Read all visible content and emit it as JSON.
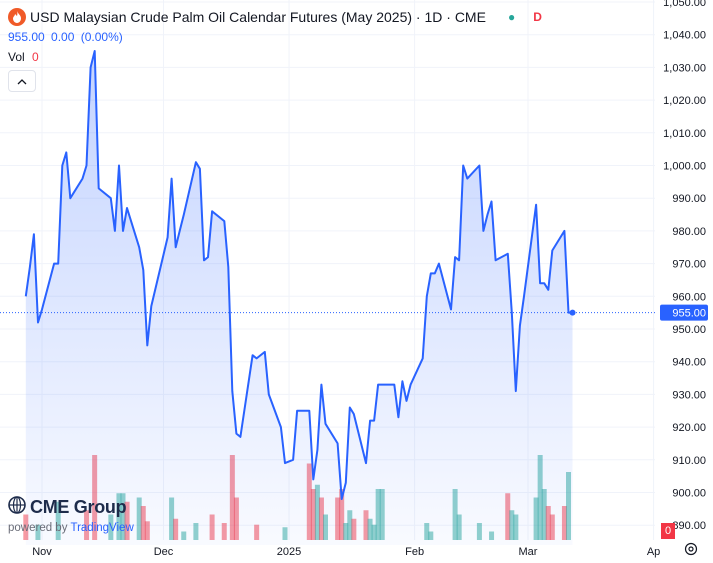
{
  "header": {
    "title": "USD Malaysian Crude Palm Oil Calendar Futures (May 2025) · 1D · CME",
    "market_status_dot": "●",
    "market_status_letter": "D"
  },
  "price_line": {
    "last": "955.00",
    "change": "0.00",
    "change_pct": "(0.00%)"
  },
  "volume_legend": {
    "label": "Vol",
    "value": "0",
    "badge": "0"
  },
  "branding": {
    "logo_text": "CME Group",
    "powered_prefix": "powered by",
    "powered_brand": "TradingView"
  },
  "colors": {
    "line": "#2962ff",
    "up": "#26a69a",
    "down": "#f23645",
    "last_price_label": "#2962ff"
  },
  "chart_data": {
    "type": "area",
    "title": "USD Malaysian Crude Palm Oil Calendar Futures (May 2025) · 1D · CME",
    "y_axis": {
      "range": [
        885,
        1050
      ],
      "ticks": [
        "1,050.00",
        "1,040.00",
        "1,030.00",
        "1,020.00",
        "1,010.00",
        "1,000.00",
        "990.00",
        "980.00",
        "970.00",
        "960.00",
        "950.00",
        "940.00",
        "930.00",
        "920.00",
        "910.00",
        "900.00",
        "890.00"
      ],
      "tick_values": [
        1050,
        1040,
        1030,
        1020,
        1010,
        1000,
        990,
        980,
        970,
        960,
        950,
        940,
        930,
        920,
        910,
        900,
        890
      ],
      "last_price_label": "955.00",
      "last_price": 955
    },
    "x_axis": {
      "labels": [
        "Nov",
        "Dec",
        "2025",
        "Feb",
        "Mar",
        "Ap"
      ],
      "label_days": [
        0,
        30,
        61,
        92,
        120,
        151
      ]
    },
    "grid": true,
    "series": [
      {
        "points": [
          [
            "2024-10-28",
            960
          ],
          [
            "2024-10-29",
            969
          ],
          [
            "2024-10-30",
            979
          ],
          [
            "2024-10-31",
            952
          ],
          [
            "2024-11-01",
            956
          ],
          [
            "2024-11-04",
            970
          ],
          [
            "2024-11-05",
            970
          ],
          [
            "2024-11-06",
            1000
          ],
          [
            "2024-11-07",
            1004
          ],
          [
            "2024-11-08",
            990
          ],
          [
            "2024-11-11",
            996
          ],
          [
            "2024-11-12",
            1000
          ],
          [
            "2024-11-13",
            1030
          ],
          [
            "2024-11-14",
            1035
          ],
          [
            "2024-11-15",
            993
          ],
          [
            "2024-11-18",
            990
          ],
          [
            "2024-11-19",
            980
          ],
          [
            "2024-11-20",
            1000
          ],
          [
            "2024-11-21",
            980
          ],
          [
            "2024-11-22",
            987
          ],
          [
            "2024-11-25",
            975
          ],
          [
            "2024-11-26",
            968
          ],
          [
            "2024-11-27",
            945
          ],
          [
            "2024-11-28",
            957
          ],
          [
            "2024-12-02",
            978
          ],
          [
            "2024-12-03",
            996
          ],
          [
            "2024-12-04",
            975
          ],
          [
            "2024-12-05",
            980
          ],
          [
            "2024-12-06",
            985
          ],
          [
            "2024-12-09",
            1001
          ],
          [
            "2024-12-10",
            999
          ],
          [
            "2024-12-11",
            971
          ],
          [
            "2024-12-12",
            972
          ],
          [
            "2024-12-13",
            986
          ],
          [
            "2024-12-16",
            983
          ],
          [
            "2024-12-17",
            969
          ],
          [
            "2024-12-18",
            931
          ],
          [
            "2024-12-19",
            918
          ],
          [
            "2024-12-20",
            917
          ],
          [
            "2024-12-23",
            942
          ],
          [
            "2024-12-24",
            941
          ],
          [
            "2024-12-26",
            943
          ],
          [
            "2024-12-27",
            930
          ],
          [
            "2024-12-30",
            920
          ],
          [
            "2024-12-31",
            909
          ],
          [
            "2025-01-02",
            910
          ],
          [
            "2025-01-03",
            925
          ],
          [
            "2025-01-06",
            925
          ],
          [
            "2025-01-07",
            904
          ],
          [
            "2025-01-08",
            913
          ],
          [
            "2025-01-09",
            933
          ],
          [
            "2025-01-10",
            921
          ],
          [
            "2025-01-13",
            915
          ],
          [
            "2025-01-14",
            898
          ],
          [
            "2025-01-15",
            903
          ],
          [
            "2025-01-16",
            926
          ],
          [
            "2025-01-17",
            924
          ],
          [
            "2025-01-20",
            909
          ],
          [
            "2025-01-21",
            922
          ],
          [
            "2025-01-22",
            922
          ],
          [
            "2025-01-23",
            933
          ],
          [
            "2025-01-24",
            933
          ],
          [
            "2025-01-27",
            933
          ],
          [
            "2025-01-28",
            923
          ],
          [
            "2025-01-29",
            934
          ],
          [
            "2025-01-30",
            928
          ],
          [
            "2025-01-31",
            933
          ],
          [
            "2025-02-03",
            941
          ],
          [
            "2025-02-04",
            960
          ],
          [
            "2025-02-05",
            967
          ],
          [
            "2025-02-06",
            967
          ],
          [
            "2025-02-07",
            970
          ],
          [
            "2025-02-10",
            956
          ],
          [
            "2025-02-11",
            972
          ],
          [
            "2025-02-12",
            971
          ],
          [
            "2025-02-13",
            1000
          ],
          [
            "2025-02-14",
            996
          ],
          [
            "2025-02-17",
            1000
          ],
          [
            "2025-02-18",
            980
          ],
          [
            "2025-02-19",
            985
          ],
          [
            "2025-02-20",
            989
          ],
          [
            "2025-02-21",
            971
          ],
          [
            "2025-02-24",
            973
          ],
          [
            "2025-02-25",
            955
          ],
          [
            "2025-02-26",
            931
          ],
          [
            "2025-02-27",
            951
          ],
          [
            "2025-02-28",
            960
          ],
          [
            "2025-03-03",
            988
          ],
          [
            "2025-03-04",
            964
          ],
          [
            "2025-03-05",
            964
          ],
          [
            "2025-03-06",
            962
          ],
          [
            "2025-03-07",
            974
          ],
          [
            "2025-03-10",
            980
          ],
          [
            "2025-03-11",
            955
          ],
          [
            "2025-03-12",
            955
          ]
        ]
      }
    ],
    "volume": {
      "bars": [
        {
          "date": "2024-10-28",
          "value": 0.3,
          "dir": "down"
        },
        {
          "date": "2024-10-31",
          "value": 0.18,
          "dir": "up"
        },
        {
          "date": "2024-11-05",
          "value": 0.45,
          "dir": "up"
        },
        {
          "date": "2024-11-12",
          "value": 0.35,
          "dir": "down"
        },
        {
          "date": "2024-11-14",
          "value": 1.0,
          "dir": "down"
        },
        {
          "date": "2024-11-18",
          "value": 0.3,
          "dir": "up"
        },
        {
          "date": "2024-11-20",
          "value": 0.55,
          "dir": "up"
        },
        {
          "date": "2024-11-21",
          "value": 0.55,
          "dir": "up"
        },
        {
          "date": "2024-11-22",
          "value": 0.45,
          "dir": "down"
        },
        {
          "date": "2024-11-25",
          "value": 0.5,
          "dir": "up"
        },
        {
          "date": "2024-11-26",
          "value": 0.4,
          "dir": "down"
        },
        {
          "date": "2024-11-27",
          "value": 0.22,
          "dir": "down"
        },
        {
          "date": "2024-12-03",
          "value": 0.5,
          "dir": "up"
        },
        {
          "date": "2024-12-04",
          "value": 0.25,
          "dir": "down"
        },
        {
          "date": "2024-12-06",
          "value": 0.1,
          "dir": "up"
        },
        {
          "date": "2024-12-09",
          "value": 0.2,
          "dir": "up"
        },
        {
          "date": "2024-12-13",
          "value": 0.3,
          "dir": "down"
        },
        {
          "date": "2024-12-16",
          "value": 0.2,
          "dir": "down"
        },
        {
          "date": "2024-12-18",
          "value": 1.0,
          "dir": "down"
        },
        {
          "date": "2024-12-19",
          "value": 0.5,
          "dir": "down"
        },
        {
          "date": "2024-12-24",
          "value": 0.18,
          "dir": "down"
        },
        {
          "date": "2024-12-31",
          "value": 0.15,
          "dir": "up"
        },
        {
          "date": "2025-01-06",
          "value": 0.9,
          "dir": "down"
        },
        {
          "date": "2025-01-07",
          "value": 0.6,
          "dir": "down"
        },
        {
          "date": "2025-01-08",
          "value": 0.65,
          "dir": "up"
        },
        {
          "date": "2025-01-09",
          "value": 0.5,
          "dir": "down"
        },
        {
          "date": "2025-01-10",
          "value": 0.3,
          "dir": "up"
        },
        {
          "date": "2025-01-13",
          "value": 0.5,
          "dir": "down"
        },
        {
          "date": "2025-01-14",
          "value": 0.6,
          "dir": "down"
        },
        {
          "date": "2025-01-15",
          "value": 0.2,
          "dir": "up"
        },
        {
          "date": "2025-01-16",
          "value": 0.35,
          "dir": "up"
        },
        {
          "date": "2025-01-17",
          "value": 0.25,
          "dir": "down"
        },
        {
          "date": "2025-01-20",
          "value": 0.35,
          "dir": "down"
        },
        {
          "date": "2025-01-21",
          "value": 0.25,
          "dir": "up"
        },
        {
          "date": "2025-01-22",
          "value": 0.18,
          "dir": "up"
        },
        {
          "date": "2025-01-23",
          "value": 0.6,
          "dir": "up"
        },
        {
          "date": "2025-01-24",
          "value": 0.6,
          "dir": "up"
        },
        {
          "date": "2025-02-04",
          "value": 0.2,
          "dir": "up"
        },
        {
          "date": "2025-02-05",
          "value": 0.1,
          "dir": "up"
        },
        {
          "date": "2025-02-11",
          "value": 0.6,
          "dir": "up"
        },
        {
          "date": "2025-02-12",
          "value": 0.3,
          "dir": "up"
        },
        {
          "date": "2025-02-17",
          "value": 0.2,
          "dir": "up"
        },
        {
          "date": "2025-02-20",
          "value": 0.1,
          "dir": "up"
        },
        {
          "date": "2025-02-24",
          "value": 0.55,
          "dir": "down"
        },
        {
          "date": "2025-02-25",
          "value": 0.35,
          "dir": "up"
        },
        {
          "date": "2025-02-26",
          "value": 0.3,
          "dir": "up"
        },
        {
          "date": "2025-03-03",
          "value": 0.5,
          "dir": "up"
        },
        {
          "date": "2025-03-04",
          "value": 1.0,
          "dir": "up"
        },
        {
          "date": "2025-03-05",
          "value": 0.6,
          "dir": "up"
        },
        {
          "date": "2025-03-06",
          "value": 0.4,
          "dir": "down"
        },
        {
          "date": "2025-03-07",
          "value": 0.3,
          "dir": "down"
        },
        {
          "date": "2025-03-10",
          "value": 0.4,
          "dir": "down"
        },
        {
          "date": "2025-03-11",
          "value": 0.8,
          "dir": "up"
        }
      ]
    }
  }
}
